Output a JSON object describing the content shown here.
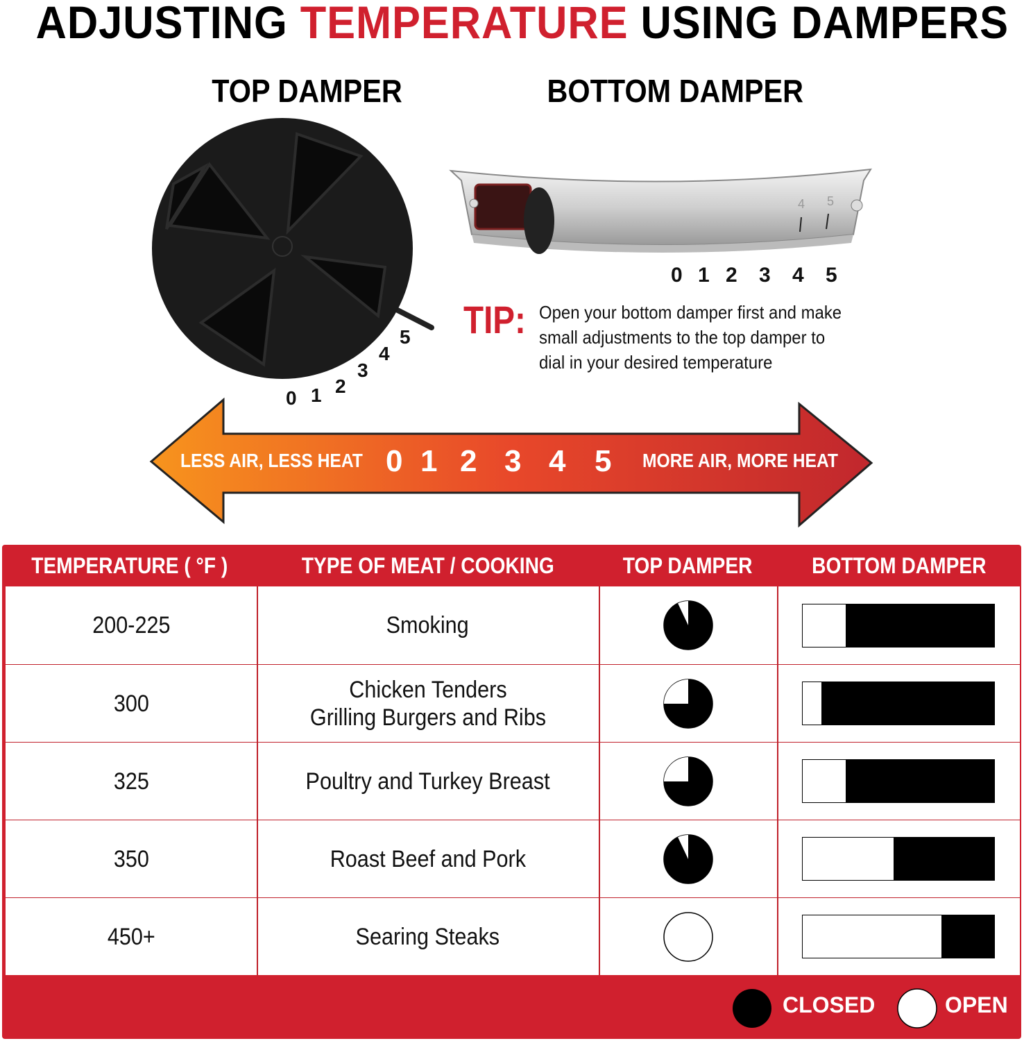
{
  "title": {
    "part1": "ADJUSTING ",
    "highlight": "TEMPERATURE",
    "part2": " USING DAMPERS"
  },
  "top_damper": {
    "label": "TOP DAMPER",
    "dial_numbers": [
      "0",
      "1",
      "2",
      "3",
      "4",
      "5"
    ]
  },
  "bottom_damper": {
    "label": "BOTTOM DAMPER",
    "scale_numbers": [
      "0",
      "1",
      "2",
      "3",
      "4",
      "5"
    ],
    "marking_numbers": [
      "4",
      "5"
    ]
  },
  "tip": {
    "label": "TIP:",
    "lines": [
      "Open your bottom damper first and make",
      "small adjustments to the top damper to",
      "dial in your desired temperature"
    ]
  },
  "arrow": {
    "left_label": "LESS AIR, LESS HEAT",
    "right_label": "MORE AIR, MORE HEAT",
    "numbers": [
      "0",
      "1",
      "2",
      "3",
      "4",
      "5"
    ],
    "gradient": [
      "#f7941d",
      "#e8482a",
      "#c1272d"
    ]
  },
  "table": {
    "headers": [
      "TEMPERATURE ( °F )",
      "TYPE OF MEAT / COOKING",
      "TOP DAMPER",
      "BOTTOM DAMPER"
    ],
    "rows": [
      {
        "temperature": "200-225",
        "cooking": [
          "Smoking"
        ],
        "top_damper_open": 0.07,
        "bottom_damper_open": 0.23
      },
      {
        "temperature": "300",
        "cooking": [
          "Chicken Tenders",
          "Grilling Burgers and Ribs"
        ],
        "top_damper_open": 0.25,
        "bottom_damper_open": 0.1
      },
      {
        "temperature": "325",
        "cooking": [
          "Poultry and Turkey Breast"
        ],
        "top_damper_open": 0.25,
        "bottom_damper_open": 0.23
      },
      {
        "temperature": "350",
        "cooking": [
          "Roast Beef and Pork"
        ],
        "top_damper_open": 0.07,
        "bottom_damper_open": 0.48
      },
      {
        "temperature": "450+",
        "cooking": [
          "Searing Steaks"
        ],
        "top_damper_open": 1.0,
        "bottom_damper_open": 0.73
      }
    ],
    "legend": {
      "closed": "CLOSED",
      "open": "OPEN"
    }
  },
  "colors": {
    "brand_red": "#d0202e",
    "closed": "#000000",
    "open": "#ffffff"
  }
}
